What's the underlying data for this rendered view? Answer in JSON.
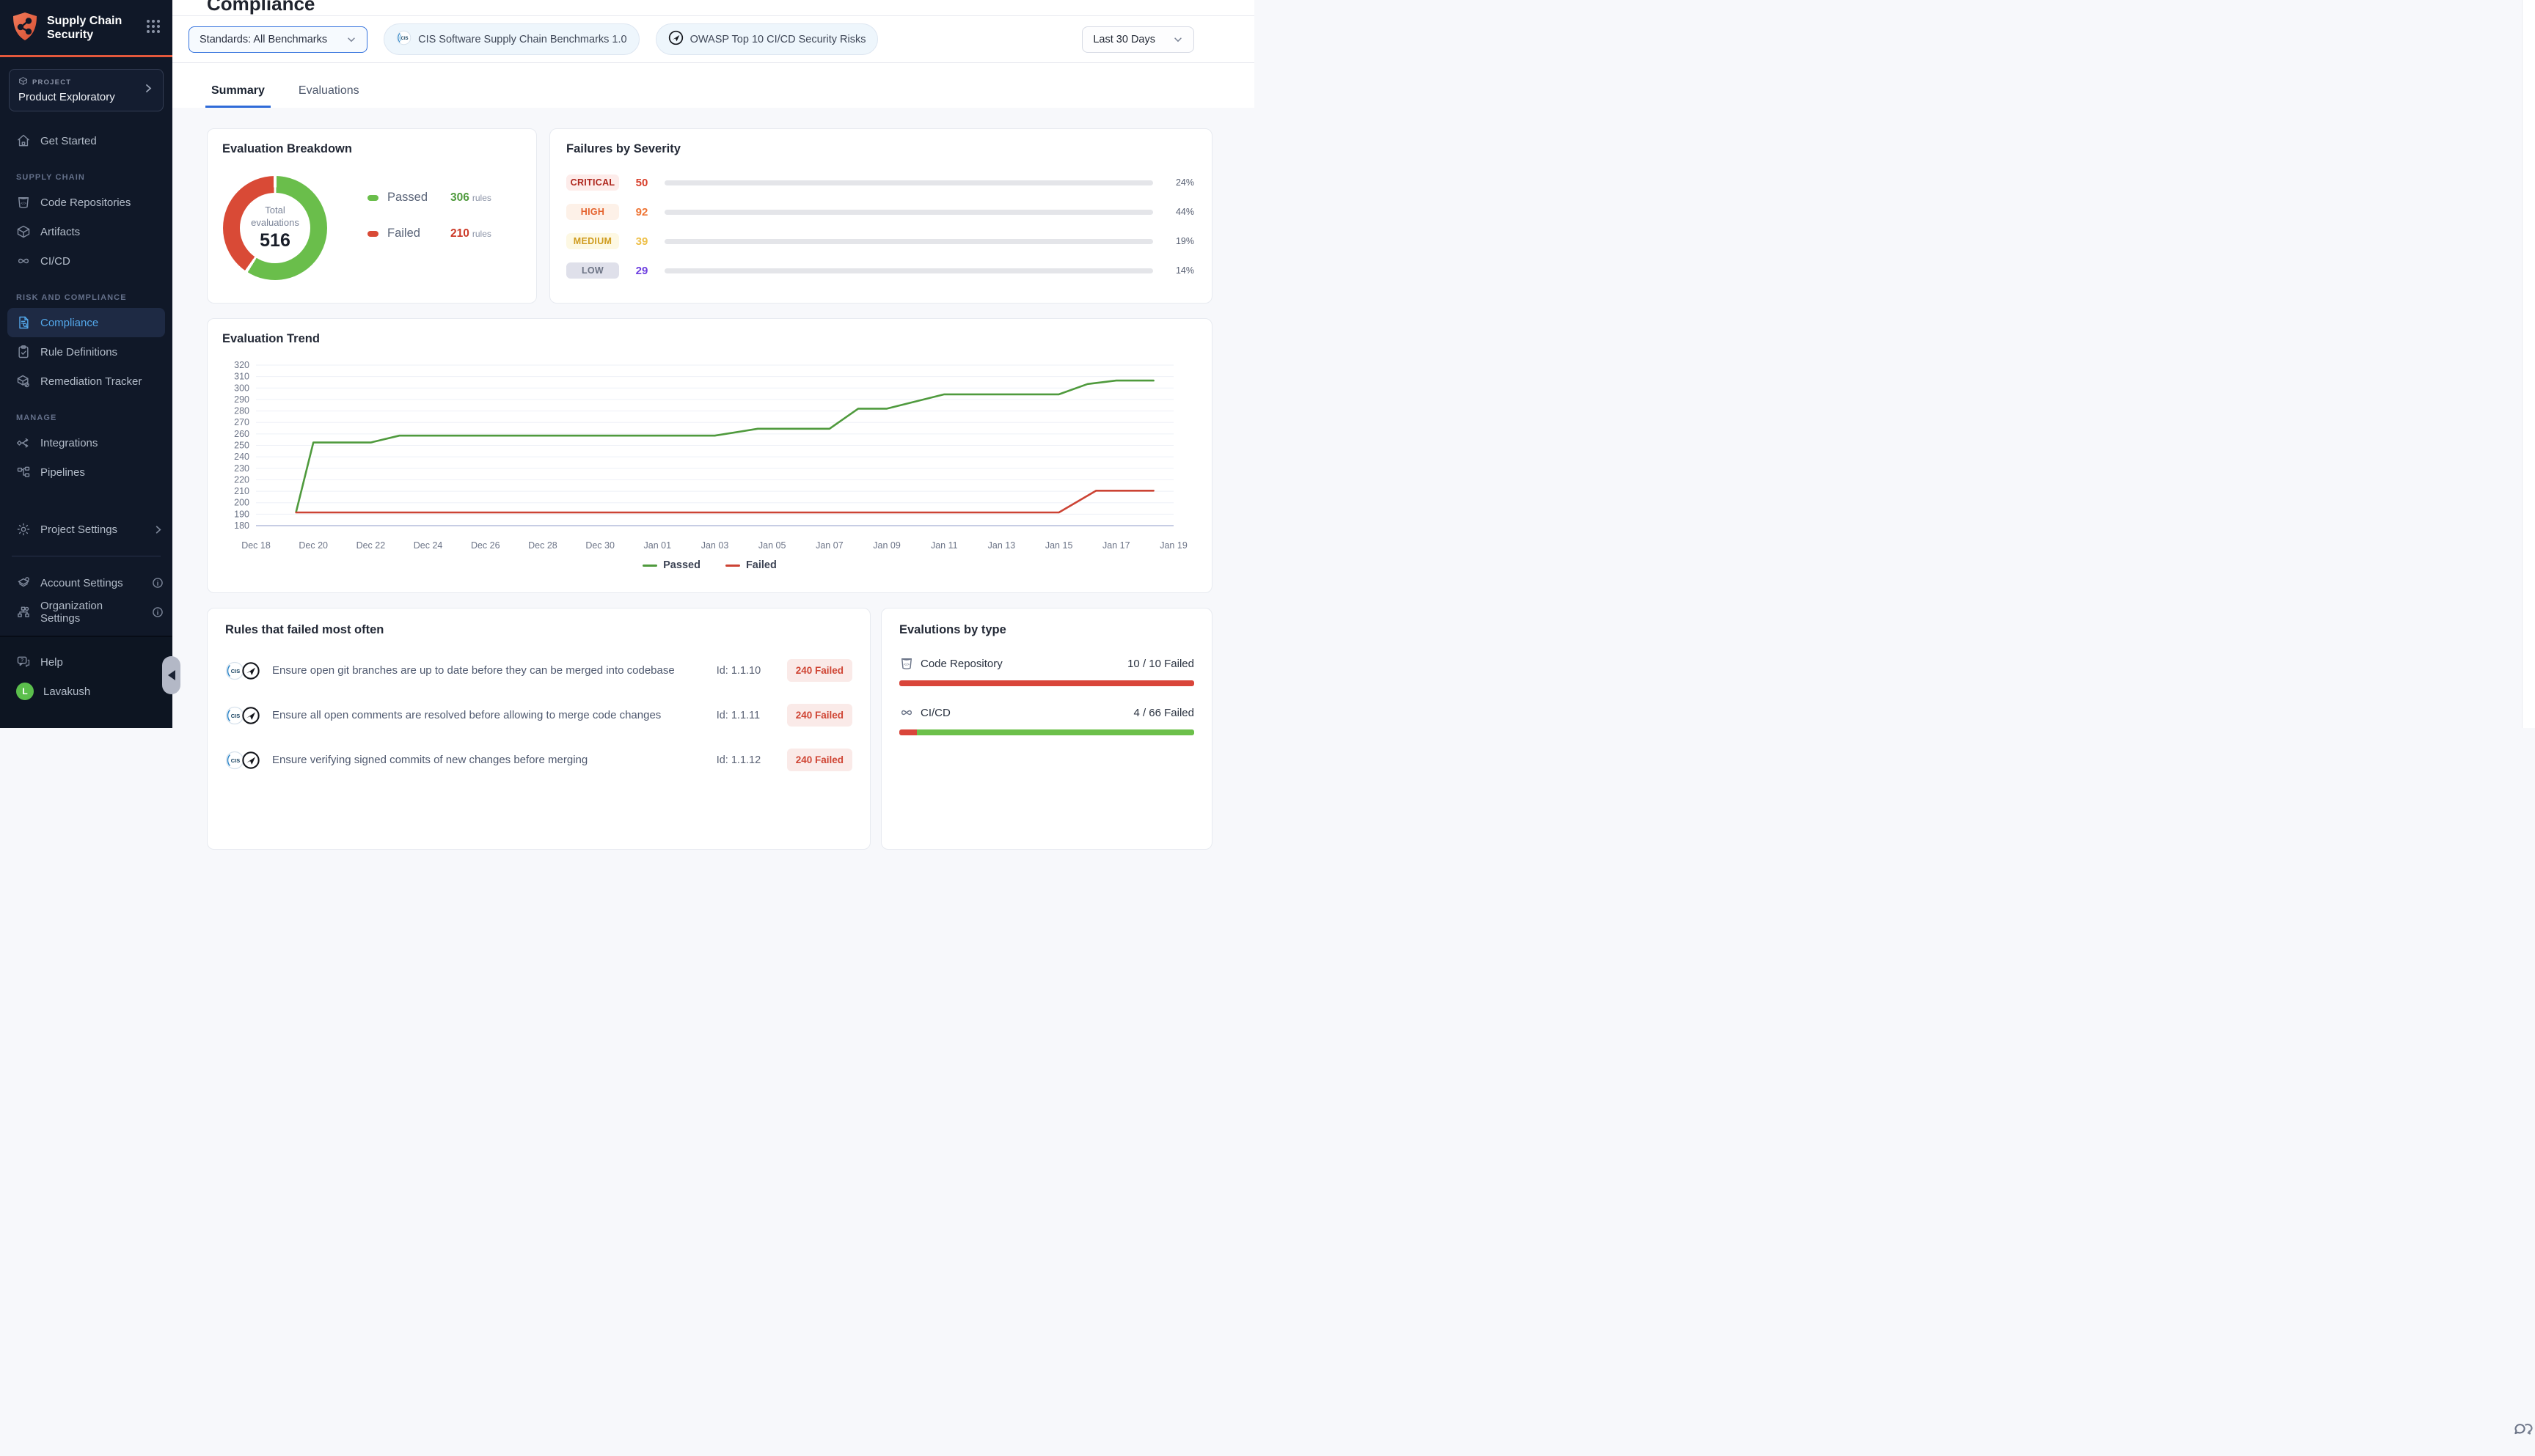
{
  "sidebar": {
    "brand": {
      "title": "Supply Chain Security",
      "logo_icon": "shield-network-icon",
      "apps_icon": "grid-apps-icon"
    },
    "project": {
      "eyebrow": "PROJECT",
      "name": "Product Exploratory",
      "icon": "cube-icon"
    },
    "get_started": {
      "label": "Get Started",
      "icon": "home-icon"
    },
    "sections": [
      {
        "title": "SUPPLY CHAIN",
        "items": [
          {
            "label": "Code Repositories",
            "icon": "code-repository-icon"
          },
          {
            "label": "Artifacts",
            "icon": "artifacts-cube-icon"
          },
          {
            "label": "CI/CD",
            "icon": "cicd-infinity-icon"
          }
        ]
      },
      {
        "title": "RISK AND COMPLIANCE",
        "items": [
          {
            "label": "Compliance",
            "icon": "compliance-doc-icon",
            "active": true
          },
          {
            "label": "Rule Definitions",
            "icon": "clipboard-check-icon"
          },
          {
            "label": "Remediation Tracker",
            "icon": "remediation-cube-icon"
          }
        ]
      },
      {
        "title": "MANAGE",
        "items": [
          {
            "label": "Integrations",
            "icon": "integrations-icon"
          },
          {
            "label": "Pipelines",
            "icon": "pipelines-icon"
          }
        ]
      }
    ],
    "project_settings": {
      "label": "Project Settings",
      "icon": "gear-icon"
    },
    "account_items": [
      {
        "label": "Account Settings",
        "icon": "layers-gear-icon"
      },
      {
        "label": "Organization Settings",
        "icon": "org-gear-icon"
      }
    ],
    "help": {
      "label": "Help",
      "icon": "help-chat-icon"
    },
    "user": {
      "name": "Lavakush",
      "initial": "L",
      "avatar_color": "#5bbf4c"
    },
    "accent_color": "#e4583c"
  },
  "header": {
    "title": "Compliance",
    "standards_dropdown": "Standards: All Benchmarks",
    "benchmark_chips": [
      {
        "label": "CIS Software Supply Chain Benchmarks 1.0",
        "icon": "cis-logo"
      },
      {
        "label": "OWASP Top 10 CI/CD Security Risks",
        "icon": "owasp-logo"
      }
    ],
    "date_range_dropdown": "Last 30 Days",
    "accent_color": "#2f6bd8"
  },
  "tabs": [
    {
      "label": "Summary",
      "active": true
    },
    {
      "label": "Evaluations",
      "active": false
    }
  ],
  "breakdown": {
    "title": "Evaluation Breakdown",
    "center": {
      "line1": "Total",
      "line2": "evaluations",
      "total": "516"
    },
    "passed": 306,
    "failed": 210,
    "passed_color": "#6abe4b",
    "failed_color": "#d94a36",
    "legend": [
      {
        "label": "Passed",
        "value": "306",
        "unit": "rules",
        "color": "#6abe4b",
        "value_color": "#4f9a3d"
      },
      {
        "label": "Failed",
        "value": "210",
        "unit": "rules",
        "color": "#d94a36",
        "value_color": "#cc3a28"
      }
    ]
  },
  "severity": {
    "title": "Failures by Severity",
    "rows": [
      {
        "label": "CRITICAL",
        "count": "50",
        "pct": "24%",
        "fill": 24,
        "badge_bg": "#fdecea",
        "badge_text": "#ae261d",
        "count_color": "#d8402c",
        "bar_from": "#ecb7b1",
        "bar_to": "#cc352a"
      },
      {
        "label": "HIGH",
        "count": "92",
        "pct": "44%",
        "fill": 44,
        "badge_bg": "#fdf1e8",
        "badge_text": "#e4632e",
        "count_color": "#ee7434",
        "bar_from": "#f8d4b7",
        "bar_to": "#ee8240"
      },
      {
        "label": "MEDIUM",
        "count": "39",
        "pct": "19%",
        "fill": 19,
        "badge_bg": "#fdf8e3",
        "badge_text": "#cf9b1e",
        "count_color": "#eec04a",
        "bar_from": "#f9efc3",
        "bar_to": "#f2ca4c"
      },
      {
        "label": "LOW",
        "count": "29",
        "pct": "14%",
        "fill": 14,
        "badge_bg": "#dfe0ea",
        "badge_text": "#6c7384",
        "count_color": "#6e3fe0",
        "bar_from": "#c5a6f6",
        "bar_to": "#7b4fec"
      }
    ]
  },
  "chart_data": {
    "type": "line",
    "title": "Evaluation Trend",
    "xlabel": "",
    "ylabel": "",
    "ylim": [
      180,
      320
    ],
    "y_step": 10,
    "x_max": 32,
    "grid": true,
    "legend_position": "bottom",
    "x_ticks": [
      "Dec 18",
      "Dec 20",
      "Dec 22",
      "Dec 24",
      "Dec 26",
      "Dec 28",
      "Dec 30",
      "Jan 01",
      "Jan 03",
      "Jan 05",
      "Jan 07",
      "Jan 09",
      "Jan 11",
      "Jan 13",
      "Jan 15",
      "Jan 17",
      "Jan 19"
    ],
    "series": [
      {
        "name": "Passed",
        "color": "#4f9a3d",
        "points": [
          [
            1.4,
            192
          ],
          [
            2,
            252.5
          ],
          [
            4,
            252.5
          ],
          [
            5,
            258.5
          ],
          [
            16,
            258.5
          ],
          [
            17.5,
            264.5
          ],
          [
            20,
            264.5
          ],
          [
            21,
            282
          ],
          [
            22,
            282
          ],
          [
            24,
            294.5
          ],
          [
            28,
            294.5
          ],
          [
            29,
            303.5
          ],
          [
            30,
            306.5
          ],
          [
            31.3,
            306.5
          ]
        ]
      },
      {
        "name": "Failed",
        "color": "#cc4334",
        "points": [
          [
            1.4,
            191.5
          ],
          [
            28,
            191.5
          ],
          [
            29.3,
            210.5
          ],
          [
            31.3,
            210.5
          ]
        ]
      }
    ]
  },
  "rules": {
    "title": "Rules that failed most often",
    "rows": [
      {
        "text": "Ensure open git branches are up to date before they can be merged into codebase",
        "id": "Id: 1.1.10",
        "badge": "240 Failed"
      },
      {
        "text": "Ensure all open comments are resolved before allowing to merge code changes",
        "id": "Id: 1.1.11",
        "badge": "240 Failed"
      },
      {
        "text": "Ensure verifying signed commits of new changes before merging",
        "id": "Id: 1.1.12",
        "badge": "240 Failed"
      }
    ]
  },
  "by_type": {
    "title": "Evalutions by type",
    "failed_color": "#d9453a",
    "passed_color": "#6cc04a",
    "rows": [
      {
        "label": "Code Repository",
        "status": "10 / 10 Failed",
        "failed_pct": 100,
        "icon": "code-repository-icon"
      },
      {
        "label": "CI/CD",
        "status": "4 / 66 Failed",
        "failed_pct": 6,
        "icon": "cicd-infinity-icon"
      }
    ]
  }
}
